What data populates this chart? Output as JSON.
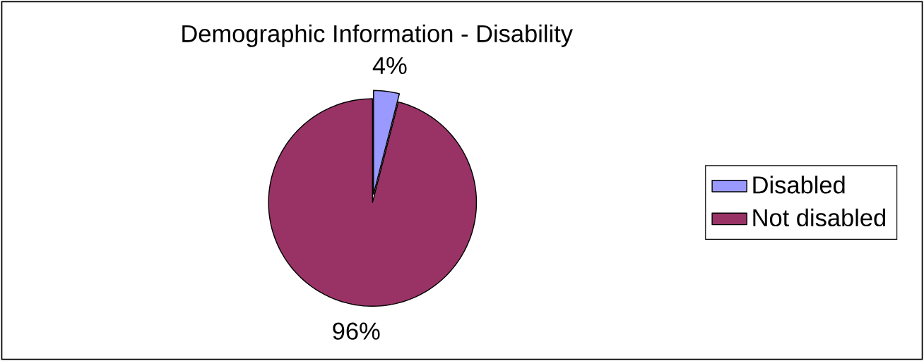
{
  "chart_data": {
    "type": "pie",
    "title": "Demographic Information - Disability",
    "categories": [
      "Disabled",
      "Not disabled"
    ],
    "values": [
      4,
      96
    ],
    "colors": [
      "#9999ff",
      "#993366"
    ],
    "value_labels": [
      "4%",
      "96%"
    ],
    "legend": "right"
  }
}
